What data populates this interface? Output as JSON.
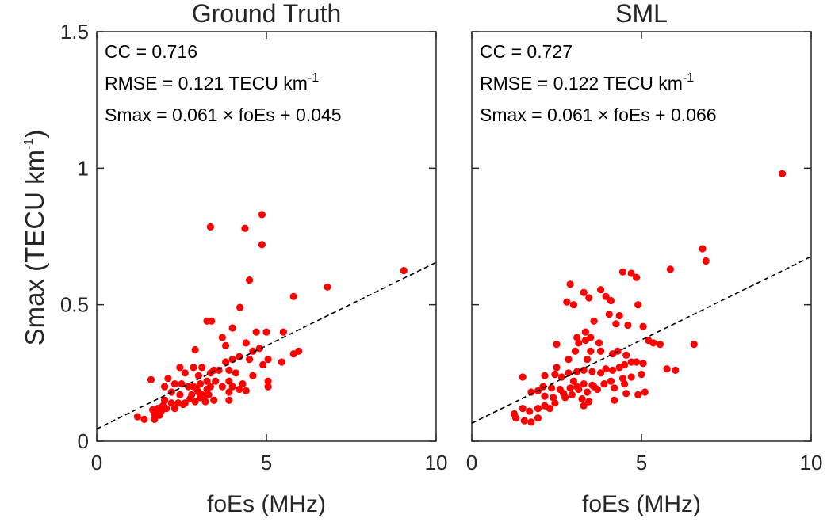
{
  "ylabel": {
    "main": "Smax (TECU km",
    "sup": "-1",
    "close": ")"
  },
  "chart_data": [
    {
      "type": "scatter",
      "title": "Ground Truth",
      "xlabel": "foEs (MHz)",
      "xlim": [
        0,
        10
      ],
      "ylim": [
        0,
        1.5
      ],
      "xticks": [
        "0",
        "5",
        "10"
      ],
      "yticks": [
        "0",
        "0.5",
        "1",
        "1.5"
      ],
      "xtick_values": [
        0,
        5,
        10
      ],
      "ytick_values": [
        0,
        0.5,
        1,
        1.5
      ],
      "marker_color": "#ff0000",
      "fit_line": {
        "slope": 0.061,
        "intercept": 0.045,
        "style": "dashed"
      },
      "annotations": {
        "cc": "CC = 0.716",
        "rmse": "RMSE = 0.121 TECU km",
        "rmse_sup": "-1",
        "fit": "Smax = 0.061 × foEs + 0.045"
      },
      "points": [
        [
          3.35,
          0.785
        ],
        [
          4.37,
          0.78
        ],
        [
          4.87,
          0.83
        ],
        [
          4.87,
          0.72
        ],
        [
          4.5,
          0.59
        ],
        [
          6.8,
          0.565
        ],
        [
          9.05,
          0.625
        ],
        [
          5.8,
          0.53
        ],
        [
          4.22,
          0.49
        ],
        [
          3.25,
          0.44
        ],
        [
          3.38,
          0.44
        ],
        [
          4.0,
          0.415
        ],
        [
          5.5,
          0.4
        ],
        [
          5.0,
          0.4
        ],
        [
          4.7,
          0.4
        ],
        [
          3.7,
          0.38
        ],
        [
          3.8,
          0.35
        ],
        [
          4.4,
          0.36
        ],
        [
          4.8,
          0.34
        ],
        [
          4.6,
          0.33
        ],
        [
          2.9,
          0.335
        ],
        [
          5.95,
          0.33
        ],
        [
          5.8,
          0.32
        ],
        [
          5.45,
          0.29
        ],
        [
          5.05,
          0.3
        ],
        [
          4.5,
          0.3
        ],
        [
          4.2,
          0.31
        ],
        [
          4.0,
          0.3
        ],
        [
          3.8,
          0.29
        ],
        [
          4.9,
          0.28
        ],
        [
          5.05,
          0.22
        ],
        [
          5.05,
          0.2
        ],
        [
          4.6,
          0.24
        ],
        [
          4.1,
          0.25
        ],
        [
          3.9,
          0.26
        ],
        [
          3.6,
          0.26
        ],
        [
          3.35,
          0.25
        ],
        [
          3.45,
          0.26
        ],
        [
          3.1,
          0.27
        ],
        [
          2.85,
          0.27
        ],
        [
          2.45,
          0.27
        ],
        [
          2.6,
          0.25
        ],
        [
          3.0,
          0.24
        ],
        [
          3.25,
          0.22
        ],
        [
          3.5,
          0.22
        ],
        [
          3.9,
          0.22
        ],
        [
          4.3,
          0.21
        ],
        [
          4.2,
          0.19
        ],
        [
          3.9,
          0.18
        ],
        [
          4.0,
          0.2
        ],
        [
          4.4,
          0.185
        ],
        [
          3.7,
          0.2
        ],
        [
          3.35,
          0.2
        ],
        [
          3.05,
          0.21
        ],
        [
          2.95,
          0.19
        ],
        [
          2.7,
          0.2
        ],
        [
          2.5,
          0.21
        ],
        [
          2.3,
          0.21
        ],
        [
          2.1,
          0.23
        ],
        [
          2.0,
          0.2
        ],
        [
          1.6,
          0.225
        ],
        [
          2.2,
          0.18
        ],
        [
          2.45,
          0.17
        ],
        [
          2.8,
          0.17
        ],
        [
          3.1,
          0.17
        ],
        [
          3.25,
          0.19
        ],
        [
          3.0,
          0.18
        ],
        [
          3.2,
          0.165
        ],
        [
          2.75,
          0.155
        ],
        [
          2.4,
          0.14
        ],
        [
          2.2,
          0.14
        ],
        [
          2.0,
          0.15
        ],
        [
          1.95,
          0.13
        ],
        [
          1.8,
          0.12
        ],
        [
          1.65,
          0.115
        ],
        [
          1.7,
          0.1
        ],
        [
          1.85,
          0.095
        ],
        [
          2.05,
          0.12
        ],
        [
          2.3,
          0.12
        ],
        [
          2.55,
          0.135
        ],
        [
          2.9,
          0.145
        ],
        [
          3.2,
          0.145
        ],
        [
          3.05,
          0.16
        ],
        [
          3.45,
          0.15
        ],
        [
          3.9,
          0.15
        ],
        [
          1.4,
          0.08
        ],
        [
          1.2,
          0.09
        ],
        [
          1.7,
          0.08
        ],
        [
          1.9,
          0.11
        ],
        [
          2.6,
          0.14
        ],
        [
          3.3,
          0.17
        ],
        [
          2.85,
          0.2
        ]
      ]
    },
    {
      "type": "scatter",
      "title": "SML",
      "xlabel": "foEs (MHz)",
      "xlim": [
        0,
        10
      ],
      "ylim": [
        0,
        1.5
      ],
      "xticks": [
        "0",
        "5",
        "10"
      ],
      "yticks": [
        "0",
        "0.5",
        "1",
        "1.5"
      ],
      "xtick_values": [
        0,
        5,
        10
      ],
      "ytick_values": [
        0,
        0.5,
        1,
        1.5
      ],
      "marker_color": "#ff0000",
      "fit_line": {
        "slope": 0.061,
        "intercept": 0.066,
        "style": "dashed"
      },
      "annotations": {
        "cc": "CC = 0.727",
        "rmse": "RMSE = 0.122 TECU km",
        "rmse_sup": "-1",
        "fit": "Smax = 0.061 × foEs + 0.066"
      },
      "points": [
        [
          9.15,
          0.98
        ],
        [
          6.8,
          0.705
        ],
        [
          6.9,
          0.66
        ],
        [
          5.85,
          0.63
        ],
        [
          4.45,
          0.62
        ],
        [
          4.7,
          0.615
        ],
        [
          4.85,
          0.6
        ],
        [
          2.9,
          0.575
        ],
        [
          3.8,
          0.555
        ],
        [
          3.3,
          0.545
        ],
        [
          3.95,
          0.53
        ],
        [
          3.45,
          0.525
        ],
        [
          4.1,
          0.515
        ],
        [
          2.8,
          0.51
        ],
        [
          3.0,
          0.5
        ],
        [
          4.9,
          0.5
        ],
        [
          4.05,
          0.465
        ],
        [
          4.35,
          0.46
        ],
        [
          4.25,
          0.43
        ],
        [
          4.6,
          0.425
        ],
        [
          3.6,
          0.44
        ],
        [
          5.05,
          0.42
        ],
        [
          3.35,
          0.4
        ],
        [
          3.5,
          0.38
        ],
        [
          3.1,
          0.38
        ],
        [
          3.75,
          0.36
        ],
        [
          3.15,
          0.36
        ],
        [
          3.35,
          0.37
        ],
        [
          2.5,
          0.355
        ],
        [
          5.2,
          0.37
        ],
        [
          5.35,
          0.36
        ],
        [
          5.55,
          0.355
        ],
        [
          6.55,
          0.355
        ],
        [
          4.3,
          0.33
        ],
        [
          4.15,
          0.32
        ],
        [
          4.55,
          0.315
        ],
        [
          3.8,
          0.33
        ],
        [
          3.05,
          0.33
        ],
        [
          3.5,
          0.33
        ],
        [
          2.85,
          0.3
        ],
        [
          3.4,
          0.3
        ],
        [
          5.05,
          0.285
        ],
        [
          4.7,
          0.29
        ],
        [
          4.85,
          0.29
        ],
        [
          4.5,
          0.28
        ],
        [
          4.35,
          0.27
        ],
        [
          4.15,
          0.26
        ],
        [
          3.95,
          0.265
        ],
        [
          3.8,
          0.25
        ],
        [
          3.55,
          0.255
        ],
        [
          3.3,
          0.26
        ],
        [
          3.1,
          0.255
        ],
        [
          2.85,
          0.25
        ],
        [
          2.5,
          0.27
        ],
        [
          2.45,
          0.245
        ],
        [
          2.15,
          0.24
        ],
        [
          1.5,
          0.235
        ],
        [
          2.65,
          0.235
        ],
        [
          3.0,
          0.22
        ],
        [
          3.3,
          0.21
        ],
        [
          3.55,
          0.205
        ],
        [
          3.9,
          0.21
        ],
        [
          4.1,
          0.22
        ],
        [
          4.45,
          0.23
        ],
        [
          4.7,
          0.235
        ],
        [
          5.0,
          0.245
        ],
        [
          5.75,
          0.265
        ],
        [
          6.0,
          0.26
        ],
        [
          4.2,
          0.195
        ],
        [
          4.5,
          0.21
        ],
        [
          3.7,
          0.19
        ],
        [
          3.4,
          0.18
        ],
        [
          3.15,
          0.19
        ],
        [
          2.9,
          0.195
        ],
        [
          2.6,
          0.19
        ],
        [
          2.35,
          0.195
        ],
        [
          2.1,
          0.2
        ],
        [
          1.95,
          0.185
        ],
        [
          1.75,
          0.18
        ],
        [
          2.15,
          0.165
        ],
        [
          2.4,
          0.16
        ],
        [
          2.7,
          0.175
        ],
        [
          2.95,
          0.17
        ],
        [
          3.25,
          0.155
        ],
        [
          3.45,
          0.145
        ],
        [
          3.3,
          0.13
        ],
        [
          4.2,
          0.15
        ],
        [
          4.55,
          0.175
        ],
        [
          4.9,
          0.17
        ],
        [
          5.1,
          0.18
        ],
        [
          2.15,
          0.13
        ],
        [
          2.3,
          0.12
        ],
        [
          1.95,
          0.12
        ],
        [
          1.7,
          0.11
        ],
        [
          1.5,
          0.12
        ],
        [
          1.25,
          0.1
        ],
        [
          1.3,
          0.085
        ],
        [
          1.55,
          0.075
        ],
        [
          1.75,
          0.07
        ],
        [
          1.95,
          0.085
        ],
        [
          2.45,
          0.14
        ],
        [
          2.75,
          0.16
        ],
        [
          3.1,
          0.2
        ],
        [
          3.6,
          0.2
        ]
      ]
    }
  ]
}
